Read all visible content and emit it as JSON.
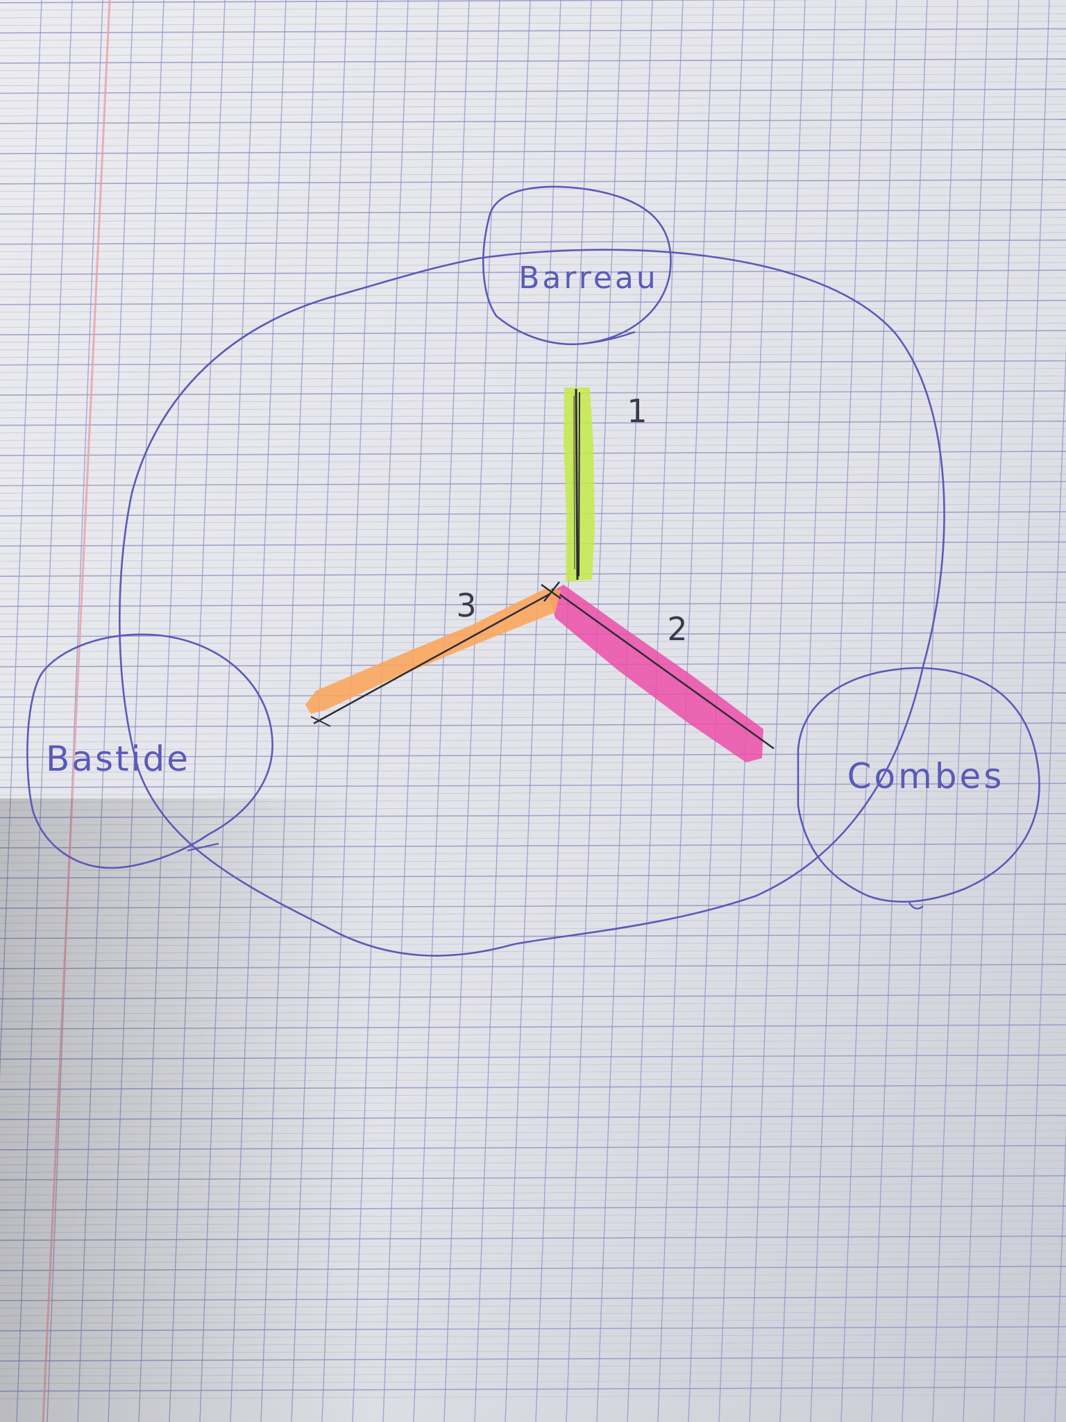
{
  "diagram": {
    "nodes": [
      {
        "id": "barreau",
        "label": "Barreau"
      },
      {
        "id": "bastide",
        "label": "Bastide"
      },
      {
        "id": "combes",
        "label": "Combes"
      }
    ],
    "edges": [
      {
        "id": "edge-1",
        "label": "1",
        "highlight_color": "#c6ea4a",
        "toward": "barreau"
      },
      {
        "id": "edge-2",
        "label": "2",
        "highlight_color": "#ec4fa8",
        "toward": "combes"
      },
      {
        "id": "edge-3",
        "label": "3",
        "highlight_color": "#f9a65e",
        "toward": "bastide"
      }
    ]
  },
  "colors": {
    "ink_blue": "#5a5ab8",
    "pencil": "#2c2c34",
    "grid_minor": "#b9bed6",
    "grid_major": "#8e93c4",
    "margin_red": "#e7a1a8",
    "paper": "#e6e7ec"
  }
}
